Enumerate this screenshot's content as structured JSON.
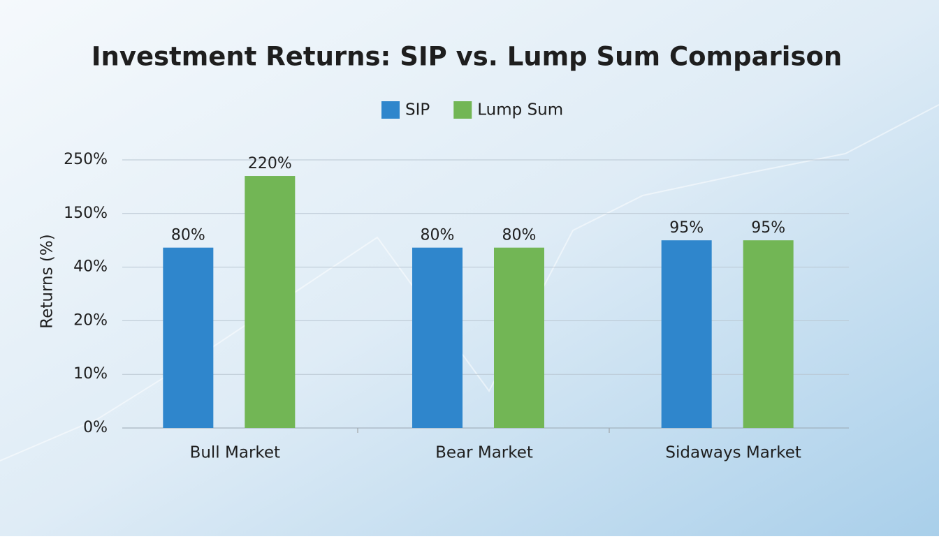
{
  "chart_data": {
    "type": "bar",
    "title": "Investment Returns: SIP vs. Lump Sum Comparison",
    "y_label": "Returns (%)",
    "categories": [
      "Bull Market",
      "Bear Market",
      "Sidaways Market"
    ],
    "series": [
      {
        "name": "SIP",
        "color": "#2f86cc",
        "values": [
          80,
          80,
          95
        ],
        "value_labels": [
          "80%",
          "80%",
          "95%"
        ]
      },
      {
        "name": "Lump Sum",
        "color": "#72b655",
        "values": [
          220,
          80,
          95
        ],
        "value_labels": [
          "220%",
          "80%",
          "95%"
        ]
      }
    ],
    "ylim": [
      0,
      250
    ],
    "yticks": [
      {
        "value": 0,
        "label": "0%"
      },
      {
        "value": 10,
        "label": "10%"
      },
      {
        "value": 20,
        "label": "20%"
      },
      {
        "value": 40,
        "label": "40%"
      },
      {
        "value": 150,
        "label": "150%"
      },
      {
        "value": 250,
        "label": "250%"
      }
    ],
    "grid": true,
    "legend": "top"
  }
}
